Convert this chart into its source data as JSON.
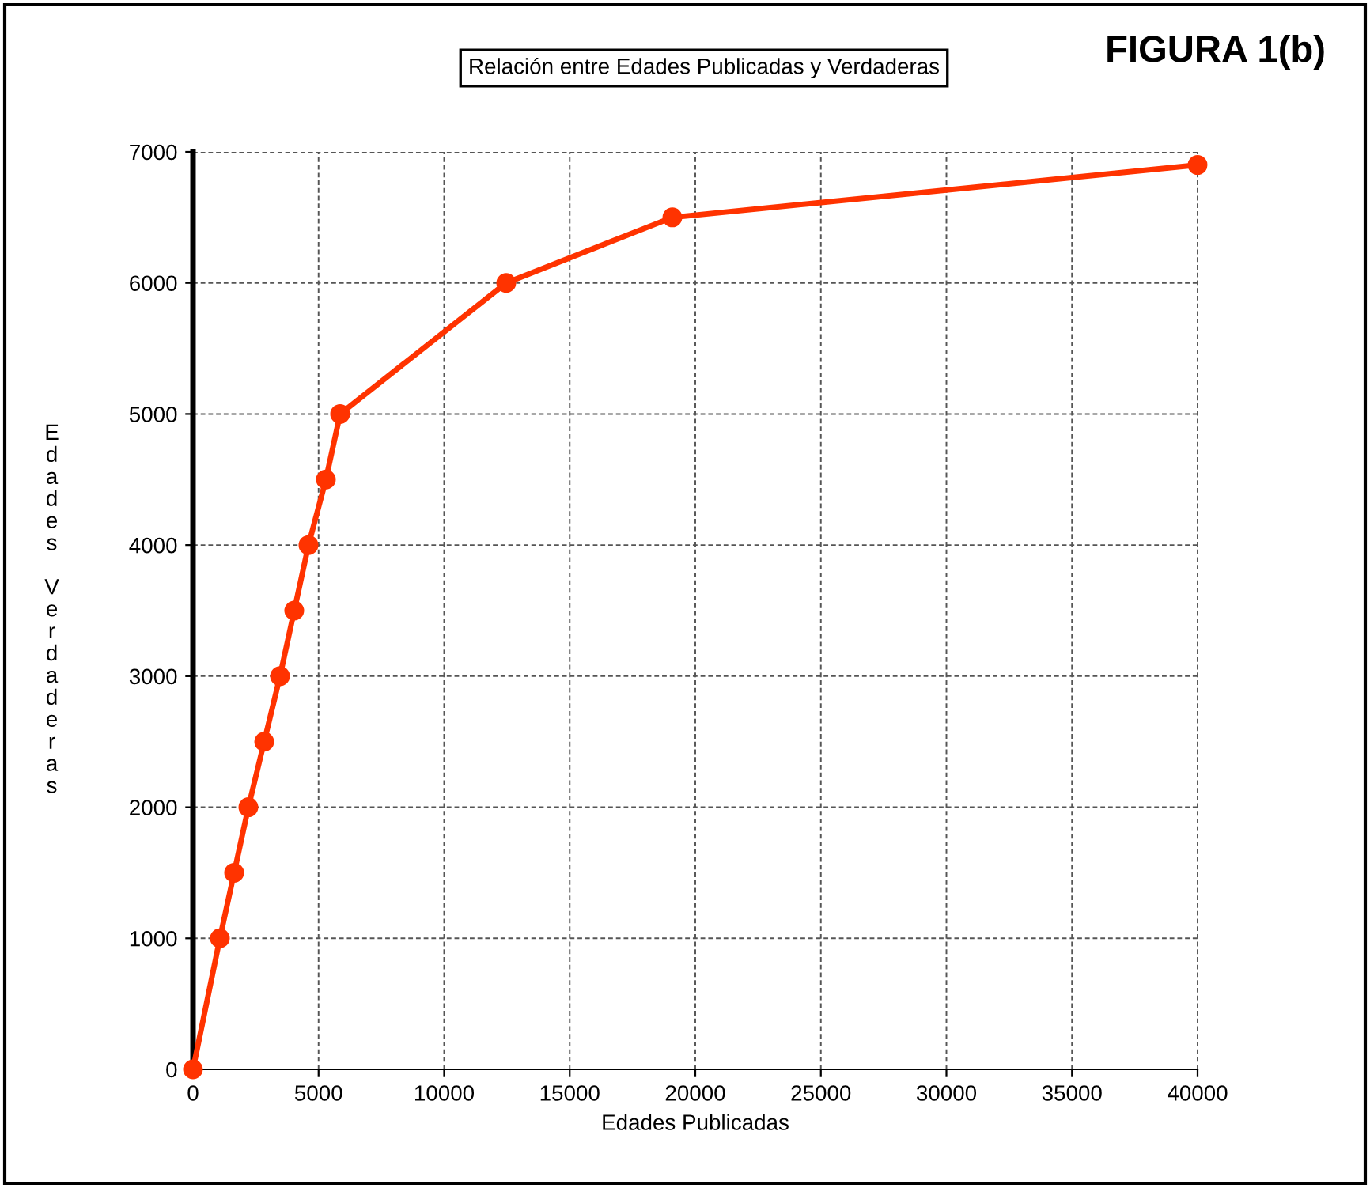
{
  "chart_data": {
    "type": "line",
    "title": "Relación entre Edades Publicadas y Verdaderas",
    "xlabel": "Edades Publicadas",
    "ylabel": "Edades Verdaderas",
    "annotations": [
      "FIGURA 1(b)"
    ],
    "series": [
      {
        "color": "#ff3300",
        "x": [
          0,
          1071,
          1638,
          2205,
          2835,
          3465,
          4031,
          4598,
          5291,
          5858,
          12472,
          19087,
          40000
        ],
        "values": [
          0,
          1000,
          1500,
          2000,
          2500,
          3000,
          3500,
          4000,
          4500,
          5000,
          6000,
          6500,
          6900
        ]
      }
    ],
    "xlim": [
      0,
      40000
    ],
    "xticks": [
      0,
      5000,
      10000,
      15000,
      20000,
      25000,
      30000,
      35000,
      40000
    ],
    "ylim": [
      0,
      7000
    ],
    "yticks": [
      0,
      1000,
      2000,
      3000,
      4000,
      5000,
      6000,
      7000
    ],
    "grid": true,
    "marker": "circle",
    "line_style": "solid",
    "legend": false
  }
}
